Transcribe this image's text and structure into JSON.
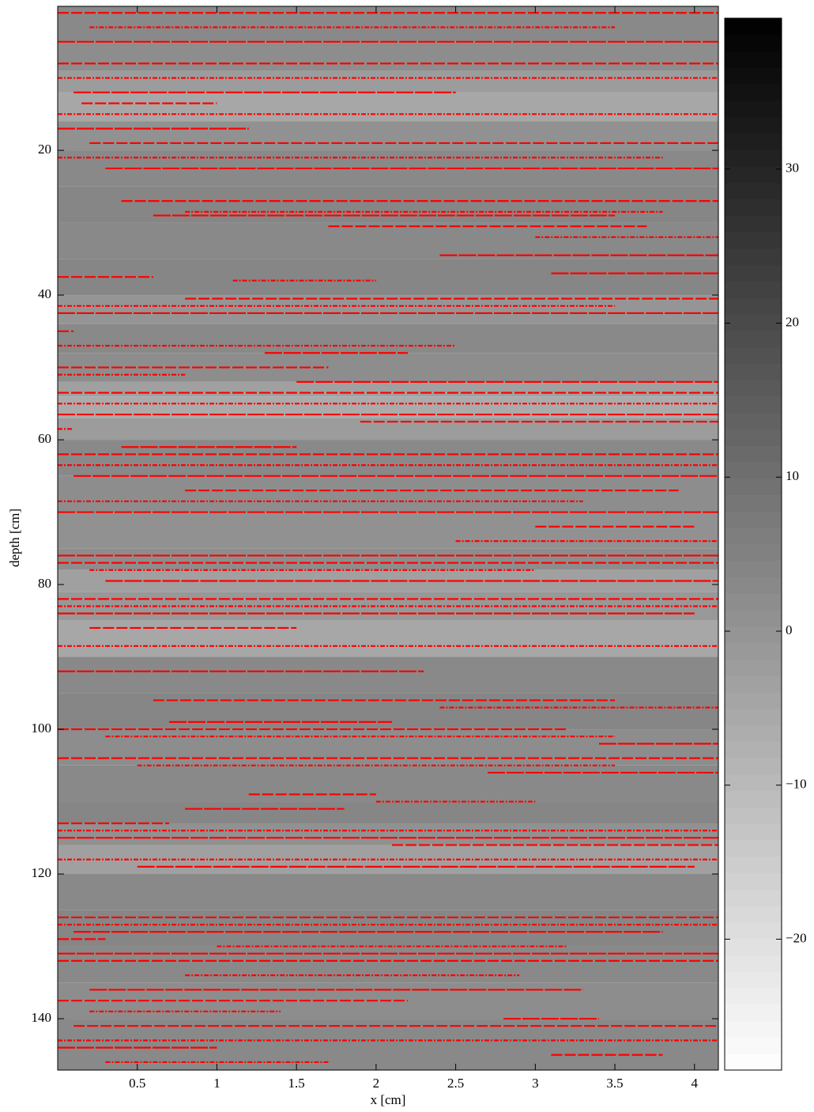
{
  "chart_data": {
    "type": "heatmap",
    "xlabel": "x [cm]",
    "ylabel": "depth [cm]",
    "xlim": [
      0,
      4.15
    ],
    "ylim": [
      0.1,
      147.1
    ],
    "xticks": [
      0.5,
      1,
      1.5,
      2,
      2.5,
      3,
      3.5,
      4
    ],
    "yticks": [
      20,
      40,
      60,
      80,
      100,
      120,
      140
    ],
    "image": {
      "depth_edges": [
        0.1,
        5,
        9,
        12,
        16,
        20,
        25,
        30,
        35,
        40,
        44,
        48,
        52,
        54,
        57,
        60,
        65,
        70,
        75,
        78,
        81,
        85,
        90,
        95,
        100,
        105,
        110,
        113,
        116,
        120,
        125,
        130,
        135,
        140,
        147.1
      ],
      "values": [
        3,
        2,
        -2,
        -5,
        1,
        3,
        4,
        3,
        4,
        0,
        3,
        2,
        -3,
        -6,
        -2,
        3,
        2,
        1,
        2,
        -3,
        -1,
        -5,
        3,
        4,
        2,
        3,
        4,
        1,
        -3,
        3,
        4,
        3,
        2,
        3
      ]
    },
    "clim": [
      -28.5,
      39.8
    ],
    "colorbar_ticks": [
      {
        "value": -20,
        "label": "−20"
      },
      {
        "value": -10,
        "label": "−10"
      },
      0,
      10,
      20,
      30
    ],
    "traces": {
      "color": "#ff0000",
      "depth": [
        1,
        3,
        5,
        8,
        10,
        12,
        13.5,
        15,
        17,
        19,
        21,
        22.5,
        27,
        28.5,
        29,
        30.5,
        32,
        34.5,
        37.5,
        38,
        37,
        40.5,
        41.5,
        42.5,
        45,
        47,
        48,
        50,
        51,
        52,
        53.5,
        55,
        56.5,
        57.5,
        58.5,
        61,
        62,
        63.5,
        65,
        67,
        68.5,
        70,
        72,
        74,
        76,
        77,
        78,
        79.5,
        82,
        83,
        84,
        86,
        88.5,
        92,
        96,
        97,
        99,
        100,
        101,
        102,
        104,
        105,
        106,
        109,
        110,
        111,
        113,
        114,
        115,
        116,
        118,
        119,
        126,
        127,
        128,
        129,
        130,
        131,
        132,
        134,
        136,
        137.5,
        139,
        140,
        141,
        143,
        144,
        145,
        146
      ],
      "x_start": [
        0,
        0.2,
        0,
        0,
        0,
        0.1,
        0.15,
        0,
        0,
        0.2,
        0,
        0.3,
        0.4,
        0.8,
        0.6,
        1.7,
        3,
        2.4,
        0,
        1.1,
        3.1,
        0.8,
        0,
        0,
        0,
        0,
        1.3,
        0,
        0,
        1.5,
        0,
        0,
        0,
        1.9,
        0,
        0.4,
        0,
        0,
        0.1,
        0.8,
        0,
        0,
        3,
        2.5,
        0,
        0,
        0.2,
        0.3,
        0,
        0,
        0,
        0.2,
        0,
        0,
        0.6,
        2.4,
        0.7,
        0,
        0.3,
        3.4,
        0,
        0.5,
        2.7,
        1.2,
        2,
        0.8,
        0,
        0,
        0,
        2.1,
        0,
        0.5,
        0,
        0,
        0.1,
        0,
        1,
        0,
        0,
        0.8,
        0.2,
        0,
        0.2,
        2.8,
        0.1,
        0,
        0,
        3.1,
        0.3
      ],
      "x_end": [
        4.15,
        3.5,
        4.15,
        4.15,
        4.15,
        2.5,
        1,
        4.15,
        1.2,
        4.15,
        3.8,
        4.15,
        4.15,
        3.8,
        3.5,
        3.7,
        4.15,
        4.15,
        0.6,
        2,
        4.15,
        4.15,
        3.5,
        4.15,
        0.1,
        2.5,
        2.2,
        1.7,
        0.8,
        4.15,
        4.15,
        4.15,
        4.15,
        4.15,
        0.1,
        1.5,
        4.15,
        4.15,
        4.15,
        3.9,
        3.3,
        4.15,
        4,
        4.15,
        4.15,
        4.15,
        3,
        4.15,
        4.15,
        4.15,
        4,
        1.5,
        4.15,
        2.3,
        3.5,
        4.15,
        2.1,
        3.2,
        3.5,
        4.15,
        4.15,
        3.5,
        4.15,
        2,
        3,
        1.8,
        0.7,
        4.15,
        4.15,
        4.15,
        4.15,
        4,
        4.15,
        4.15,
        3.8,
        0.3,
        3.2,
        4.15,
        4.15,
        2.9,
        3.3,
        2.2,
        1.4,
        3.4,
        4.15,
        4.15,
        1,
        3.8,
        1.7
      ]
    }
  }
}
